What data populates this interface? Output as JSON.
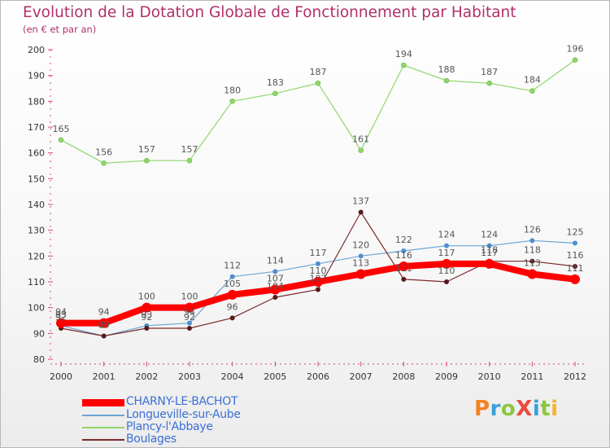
{
  "title": "Evolution de la Dotation Globale de Fonctionnement par Habitant",
  "subtitle": "(en € et par an)",
  "logo_text": "ProXiti",
  "logo_colors": [
    "#f58220",
    "#3aa0d8",
    "#8cc63f",
    "#e94b3c",
    "#3aa0d8",
    "#8cc63f",
    "#f7b32b"
  ],
  "chart_data": {
    "type": "line",
    "title": "Evolution de la Dotation Globale de Fonctionnement par Habitant",
    "subtitle": "(en € et par an)",
    "xlabel": "",
    "ylabel": "",
    "x": [
      "2000",
      "2001",
      "2002",
      "2003",
      "2004",
      "2005",
      "2006",
      "2007",
      "2008",
      "2009",
      "2010",
      "2011",
      "2012"
    ],
    "ylim": [
      80,
      200
    ],
    "yticks": [
      80,
      90,
      100,
      110,
      120,
      130,
      140,
      150,
      160,
      170,
      180,
      190,
      200
    ],
    "grid": false,
    "legend_position": "bottom-left",
    "series": [
      {
        "name": "CHARNY-LE-BACHOT",
        "color": "#ff0000",
        "values": [
          94,
          94,
          100,
          100,
          105,
          107,
          110,
          113,
          116,
          117,
          117,
          113,
          111
        ],
        "labels": [
          "94",
          "94",
          "100",
          "100",
          "105",
          "107",
          "110",
          "113",
          "116",
          "117",
          "117",
          "113",
          "111"
        ]
      },
      {
        "name": "Longueville-sur-Aube",
        "color": "#6aa6d6",
        "values": [
          93,
          89,
          93,
          94,
          112,
          114,
          117,
          120,
          122,
          124,
          124,
          126,
          125
        ],
        "labels": [
          "93",
          "89",
          "93",
          "94",
          "112",
          "114",
          "117",
          "120",
          "122",
          "124",
          "124",
          "126",
          "125"
        ]
      },
      {
        "name": "Plancy-l'Abbaye",
        "color": "#8fd66b",
        "values": [
          165,
          156,
          157,
          157,
          180,
          183,
          187,
          161,
          194,
          188,
          187,
          184,
          196
        ],
        "labels": [
          "165",
          "156",
          "157",
          "157",
          "180",
          "183",
          "187",
          "161",
          "194",
          "188",
          "187",
          "184",
          "196"
        ]
      },
      {
        "name": "Boulages",
        "color": "#7a2a2a",
        "values": [
          92,
          89,
          92,
          92,
          96,
          104,
          107,
          137,
          111,
          110,
          118,
          118,
          116
        ],
        "labels": [
          "92",
          "89",
          "92",
          "92",
          "96",
          "104",
          "107",
          "137",
          "111",
          "110",
          "118",
          "118",
          "116"
        ]
      }
    ]
  }
}
